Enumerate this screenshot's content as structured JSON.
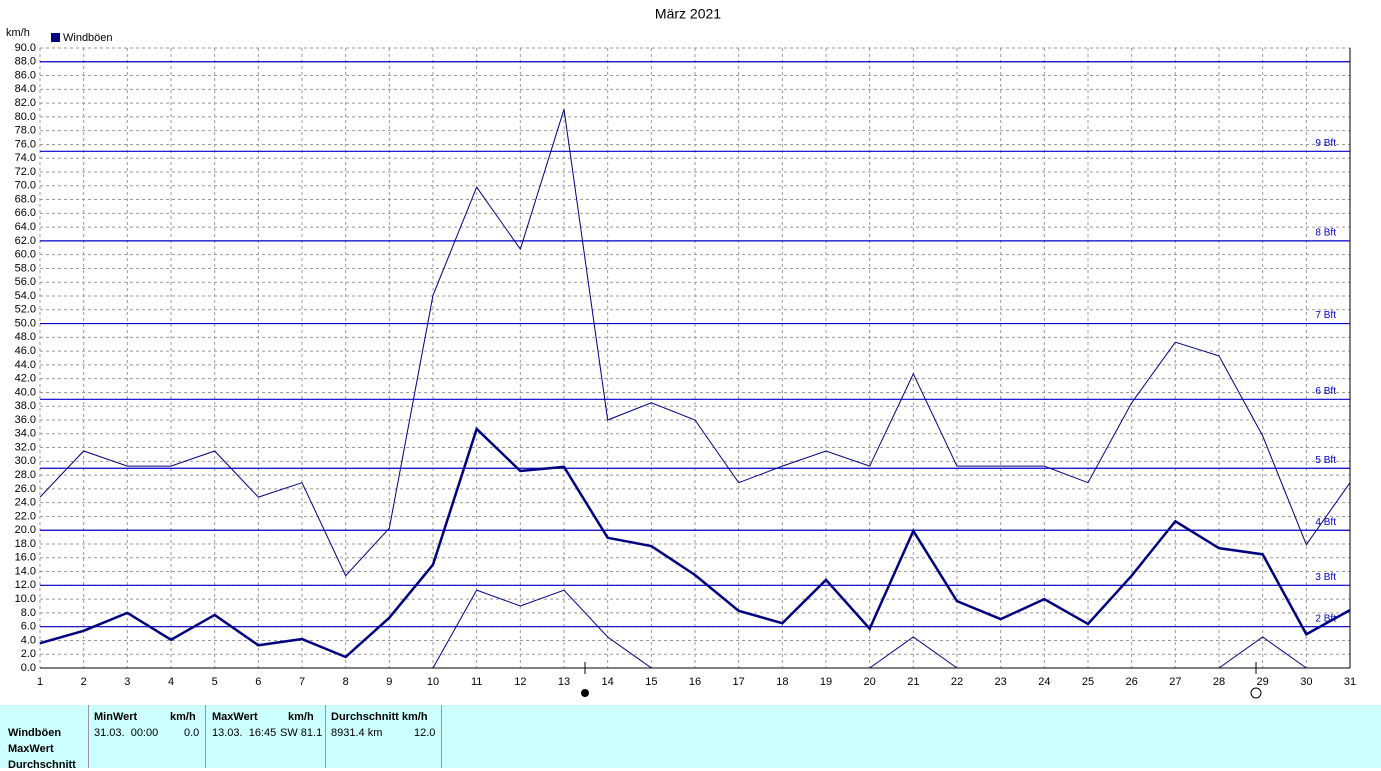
{
  "chart_data": {
    "type": "line",
    "title": "März 2021",
    "y_label": "km/h",
    "x": [
      1,
      2,
      3,
      4,
      5,
      6,
      7,
      8,
      9,
      10,
      11,
      12,
      13,
      14,
      15,
      16,
      17,
      18,
      19,
      20,
      21,
      22,
      23,
      24,
      25,
      26,
      27,
      28,
      29,
      30,
      31
    ],
    "xlim": [
      1,
      31
    ],
    "xticks": [
      1,
      2,
      3,
      4,
      5,
      6,
      7,
      8,
      9,
      10,
      11,
      12,
      13,
      14,
      15,
      16,
      17,
      18,
      19,
      20,
      21,
      22,
      23,
      24,
      25,
      26,
      27,
      28,
      29,
      30,
      31
    ],
    "ylim": [
      0,
      90
    ],
    "yticks": [
      {
        "value": 0,
        "label": "0.0"
      },
      {
        "value": 2,
        "label": "2.0"
      },
      {
        "value": 4,
        "label": "4.0"
      },
      {
        "value": 6,
        "label": "6.0"
      },
      {
        "value": 8,
        "label": "8.0"
      },
      {
        "value": 10,
        "label": "10.0"
      },
      {
        "value": 12,
        "label": "12.0"
      },
      {
        "value": 14,
        "label": "14.0"
      },
      {
        "value": 16,
        "label": "16.0"
      },
      {
        "value": 18,
        "label": "18.0"
      },
      {
        "value": 20,
        "label": "20.0"
      },
      {
        "value": 22,
        "label": "22.0"
      },
      {
        "value": 24,
        "label": "24.0"
      },
      {
        "value": 26,
        "label": "26.0"
      },
      {
        "value": 28,
        "label": "28.0"
      },
      {
        "value": 30,
        "label": "30.0"
      },
      {
        "value": 32,
        "label": "32.0"
      },
      {
        "value": 34,
        "label": "34.0"
      },
      {
        "value": 36,
        "label": "36.0"
      },
      {
        "value": 38,
        "label": "38.0"
      },
      {
        "value": 40,
        "label": "40.0"
      },
      {
        "value": 42,
        "label": "42.0"
      },
      {
        "value": 44,
        "label": "44.0"
      },
      {
        "value": 46,
        "label": "46.0"
      },
      {
        "value": 48,
        "label": "48.0"
      },
      {
        "value": 50,
        "label": "50.0"
      },
      {
        "value": 52,
        "label": "52.0"
      },
      {
        "value": 54,
        "label": "54.0"
      },
      {
        "value": 56,
        "label": "56.0"
      },
      {
        "value": 58,
        "label": "58.0"
      },
      {
        "value": 60,
        "label": "60.0"
      },
      {
        "value": 62,
        "label": "62.0"
      },
      {
        "value": 64,
        "label": "64.0"
      },
      {
        "value": 66,
        "label": "66.0"
      },
      {
        "value": 68,
        "label": "68.0"
      },
      {
        "value": 70,
        "label": "70.0"
      },
      {
        "value": 72,
        "label": "72.0"
      },
      {
        "value": 74,
        "label": "74.0"
      },
      {
        "value": 76,
        "label": "76.0"
      },
      {
        "value": 78,
        "label": "78.0"
      },
      {
        "value": 80,
        "label": "80.0"
      },
      {
        "value": 82,
        "label": "82.0"
      },
      {
        "value": 84,
        "label": "84.0"
      },
      {
        "value": 86,
        "label": "86.0"
      },
      {
        "value": 88,
        "label": "88.0"
      },
      {
        "value": 90,
        "label": "90.0"
      }
    ],
    "grid": true,
    "legend": "top-left",
    "series": [
      {
        "name": "Windböen",
        "color": "#000080",
        "width": 2.5,
        "values": [
          3.6,
          5.4,
          8.0,
          4.1,
          7.7,
          3.3,
          4.2,
          1.6,
          7.3,
          15.0,
          34.7,
          28.6,
          29.2,
          18.9,
          17.7,
          13.5,
          8.3,
          6.5,
          12.8,
          5.7,
          19.9,
          9.7,
          7.1,
          10.0,
          6.4,
          13.4,
          21.3,
          17.4,
          16.5,
          4.9,
          8.4
        ]
      },
      {
        "color": "#000080",
        "width": 1,
        "values": [
          24.8,
          31.5,
          29.3,
          29.3,
          31.5,
          24.8,
          26.9,
          13.4,
          20.3,
          54.1,
          69.8,
          60.8,
          81.1,
          36.0,
          38.5,
          36.0,
          26.9,
          29.3,
          31.5,
          29.3,
          42.7,
          29.3,
          29.3,
          29.3,
          26.9,
          38.5,
          47.3,
          45.3,
          33.7,
          17.9,
          26.9
        ]
      },
      {
        "color": "#000080",
        "width": 1,
        "values": [
          null,
          null,
          null,
          null,
          null,
          null,
          null,
          null,
          null,
          0,
          11.3,
          9.0,
          11.3,
          4.5,
          0,
          null,
          null,
          null,
          null,
          0,
          4.5,
          0,
          null,
          null,
          null,
          null,
          null,
          0,
          4.5,
          0,
          null
        ]
      }
    ],
    "reference_lines": [
      {
        "value": 6,
        "label": "2 Bft"
      },
      {
        "value": 12,
        "label": "3 Bft"
      },
      {
        "value": 20,
        "label": "4 Bft"
      },
      {
        "value": 29,
        "label": "5 Bft"
      },
      {
        "value": 39,
        "label": "6 Bft"
      },
      {
        "value": 50,
        "label": "7 Bft"
      },
      {
        "value": 62,
        "label": "8 Bft"
      },
      {
        "value": 75,
        "label": "9 Bft"
      },
      {
        "value": 88
      }
    ],
    "reference_color": "#0000cc"
  },
  "stats_table": {
    "row_labels": [
      "Windböen",
      "MaxWert",
      "Durchschnitt"
    ],
    "columns": [
      {
        "title": "MinWert",
        "unit": "km/h",
        "time": "31.03.  00:00",
        "value": "0.0"
      },
      {
        "title": "MaxWert",
        "unit": "km/h",
        "time": "13.03.  16:45",
        "value": "SW 81.1"
      },
      {
        "title": "Durchschnitt km/h",
        "time": "8931.4 km",
        "value": "12.0"
      }
    ]
  }
}
